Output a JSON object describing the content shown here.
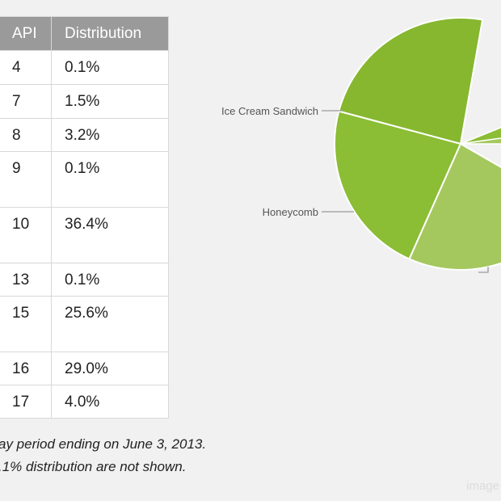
{
  "table": {
    "headers": [
      "",
      "API",
      "Distribution"
    ],
    "rows": [
      {
        "api": "4",
        "distribution": "0.1%",
        "height": 42
      },
      {
        "api": "7",
        "distribution": "1.5%",
        "height": 42
      },
      {
        "api": "8",
        "distribution": "3.2%",
        "height": 41
      },
      {
        "api": "9",
        "distribution": "0.1%",
        "height": 69
      },
      {
        "api": "10",
        "distribution": "36.4%",
        "height": 69
      },
      {
        "api": "13",
        "distribution": "0.1%",
        "height": 41
      },
      {
        "api": "15",
        "distribution": "25.6%",
        "height": 69
      },
      {
        "api": "16",
        "distribution": "29.0%",
        "height": 41
      },
      {
        "api": "17",
        "distribution": "4.0%",
        "height": 41
      }
    ]
  },
  "notes": [
    "ay period ending on June 3, 2013.",
    ".1% distribution are not shown."
  ],
  "watermark": "image",
  "chart_data": {
    "type": "pie",
    "labels_visible": [
      "Ice Cream Sandwich",
      "Honeycomb"
    ],
    "slices": [
      {
        "label": "",
        "value": 36.4,
        "color": "#86b72f"
      },
      {
        "label": "Ice Cream Sandwich",
        "value": 25.6,
        "color": "#8bbd35"
      },
      {
        "label": "Honeycomb",
        "value": 29.0,
        "color": "#a4c85e"
      }
    ],
    "colors": {
      "stroke": "#ffffff",
      "leader": "#9a9a9a",
      "label": "#555555"
    }
  }
}
